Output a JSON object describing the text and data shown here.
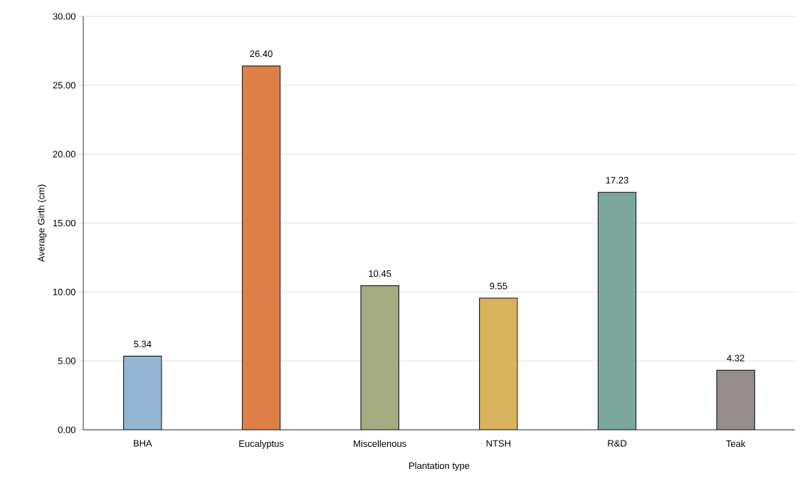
{
  "chart_data": {
    "type": "bar",
    "xlabel": "Plantation type",
    "ylabel": "Average Girth (cm)",
    "categories": [
      "BHA",
      "Eucalyptus",
      "Miscellenous",
      "NTSH",
      "R&D",
      "Teak"
    ],
    "values": [
      5.34,
      26.4,
      10.45,
      9.55,
      17.23,
      4.32
    ],
    "value_labels": [
      "5.34",
      "26.40",
      "10.45",
      "9.55",
      "17.23",
      "4.32"
    ],
    "colors": [
      "#94b6d2",
      "#dd8047",
      "#a5ab81",
      "#d8b25c",
      "#7ba79d",
      "#968c8c"
    ],
    "ylim": [
      0,
      30
    ],
    "yticks": [
      {
        "value": 0,
        "label": "0.00"
      },
      {
        "value": 5,
        "label": "5.00"
      },
      {
        "value": 10,
        "label": "10.00"
      },
      {
        "value": 15,
        "label": "15.00"
      },
      {
        "value": 20,
        "label": "20.00"
      },
      {
        "value": 25,
        "label": "25.00"
      },
      {
        "value": 30,
        "label": "30.00"
      }
    ],
    "grid": "y"
  }
}
